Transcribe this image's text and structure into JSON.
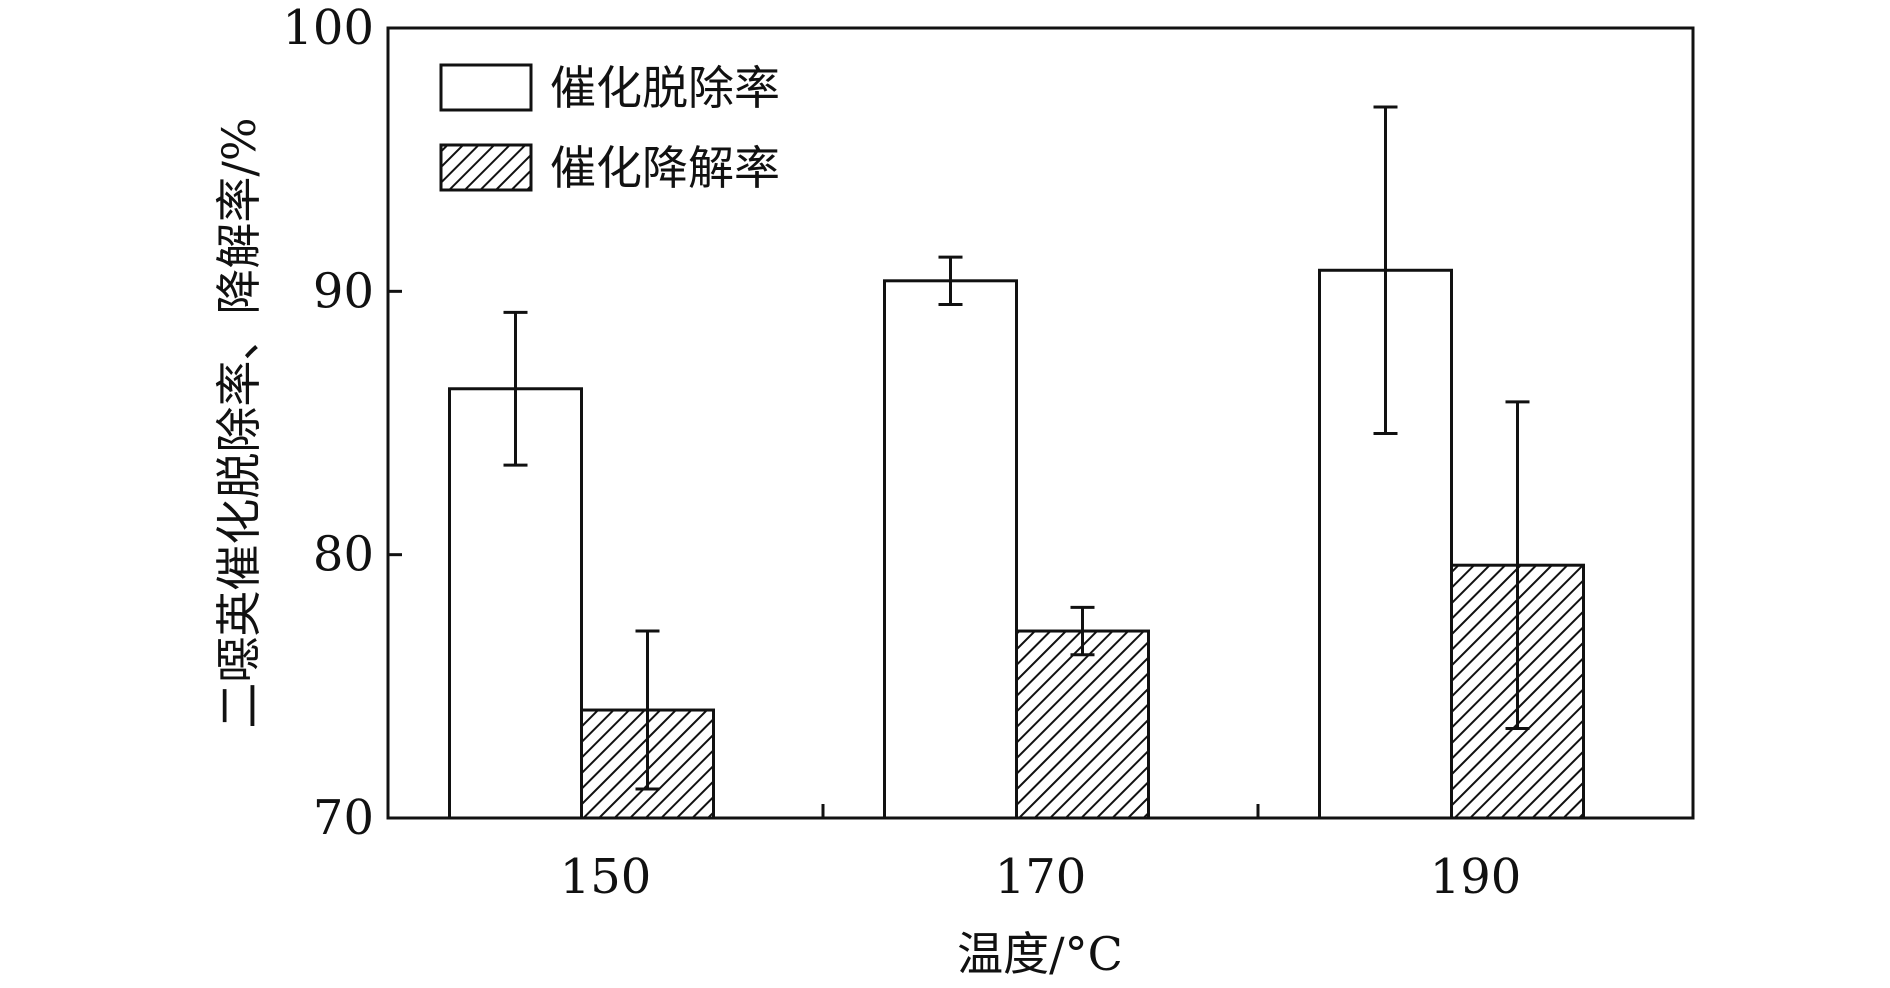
{
  "chart_data": {
    "type": "bar",
    "title": "",
    "xlabel": "温度/°C",
    "ylabel": "二噁英催化脱除率、降解率/%",
    "categories": [
      "150",
      "170",
      "190"
    ],
    "ylim": [
      70,
      100
    ],
    "yticks": [
      70,
      80,
      90,
      100
    ],
    "grid": false,
    "legend_position": "top-left",
    "series": [
      {
        "name": "催化脱除率",
        "values": [
          86.3,
          90.4,
          90.8
        ],
        "errors": [
          2.9,
          0.9,
          6.2
        ],
        "fill": "#ffffff",
        "pattern": "none"
      },
      {
        "name": "催化降解率",
        "values": [
          74.1,
          77.1,
          79.6
        ],
        "errors": [
          3.0,
          0.9,
          6.2
        ],
        "fill": "#ffffff",
        "pattern": "diagonal-hatch"
      }
    ]
  }
}
